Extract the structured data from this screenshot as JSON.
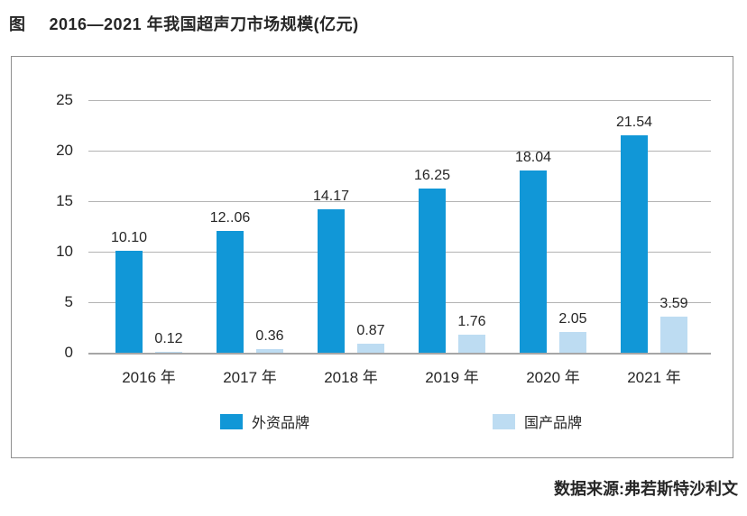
{
  "page": {
    "figure_prefix": "图",
    "title": "2016—2021 年我国超声刀市场规模(亿元)",
    "source": "数据来源:弗若斯特沙利文"
  },
  "chart_data": {
    "type": "bar",
    "title": "2016—2021 年我国超声刀市场规模(亿元)",
    "categories": [
      "2016 年",
      "2017 年",
      "2018 年",
      "2019 年",
      "2020 年",
      "2021 年"
    ],
    "series": [
      {
        "name": "外资品牌",
        "color": "#1197d7",
        "values": [
          10.1,
          12.06,
          14.17,
          16.25,
          18.04,
          21.54
        ],
        "labels": [
          "10.10",
          "12..06",
          "14.17",
          "16.25",
          "18.04",
          "21.54"
        ]
      },
      {
        "name": "国产品牌",
        "color": "#bddcf2",
        "values": [
          0.12,
          0.36,
          0.87,
          1.76,
          2.05,
          3.59
        ],
        "labels": [
          "0.12",
          "0.36",
          "0.87",
          "1.76",
          "2.05",
          "3.59"
        ]
      }
    ],
    "xlabel": "",
    "ylabel": "",
    "ylim": [
      0,
      25
    ],
    "yticks": [
      0,
      5,
      10,
      15,
      20,
      25
    ],
    "grid": true,
    "legend_position": "bottom",
    "source": "数据来源:弗若斯特沙利文"
  }
}
